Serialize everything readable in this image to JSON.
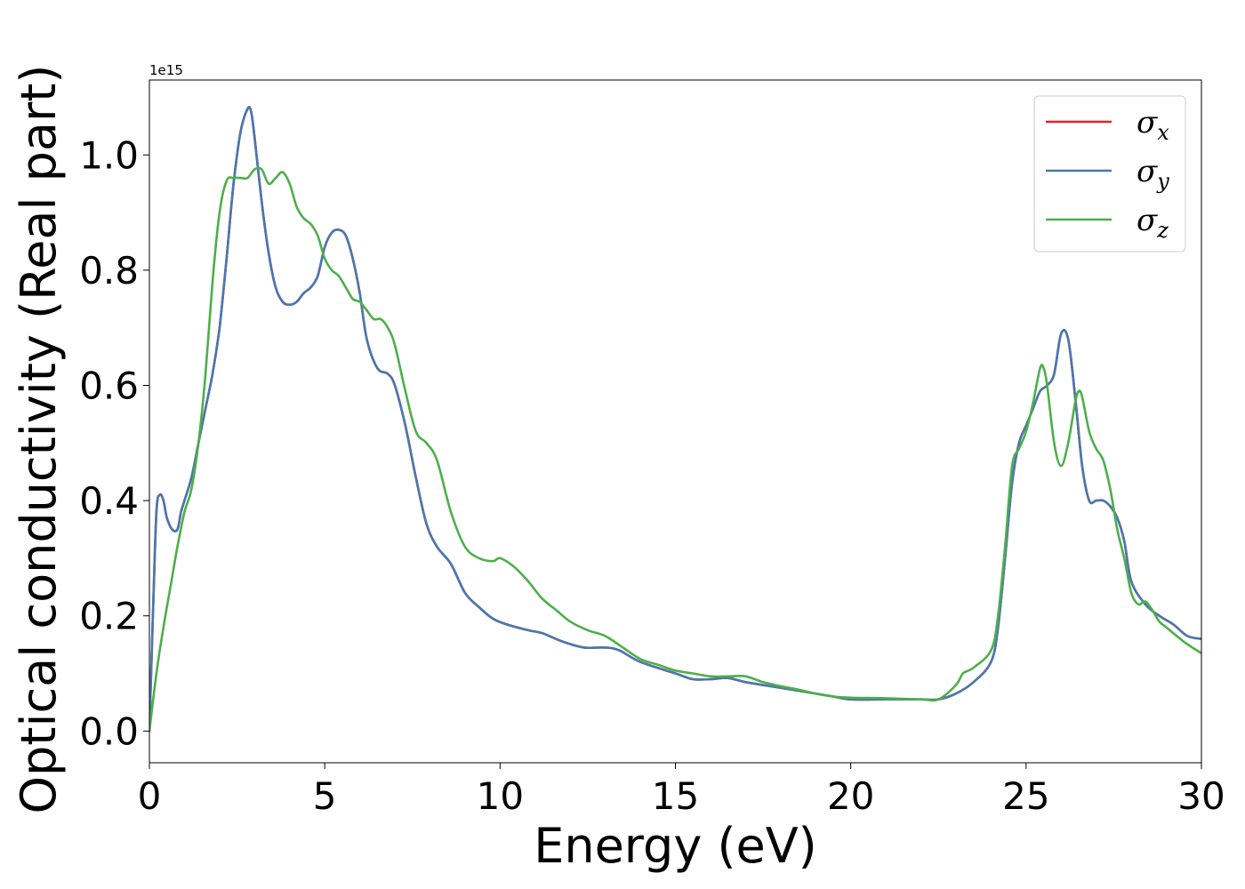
{
  "chart_data": {
    "type": "line",
    "xlabel": "Energy (eV)",
    "ylabel": "Optical conductivity (Real part)",
    "offset_text": "1e15",
    "xlim": [
      0,
      30
    ],
    "ylim": [
      -0.055,
      1.13
    ],
    "xticks": [
      0,
      5,
      10,
      15,
      20,
      25,
      30
    ],
    "xtick_labels": [
      "0",
      "5",
      "10",
      "15",
      "20",
      "25",
      "30"
    ],
    "yticks": [
      0.0,
      0.2,
      0.4,
      0.6,
      0.8,
      1.0
    ],
    "ytick_labels": [
      "0.0",
      "0.2",
      "0.4",
      "0.6",
      "0.8",
      "1.0"
    ],
    "grid": false,
    "legend_position": "top-right",
    "colors": {
      "sigma_x": "#d62728",
      "sigma_y": "#4878b0",
      "sigma_z": "#4daf4a"
    },
    "series": [
      {
        "name": "σx",
        "symbol": "σ",
        "subscript": "x",
        "color": "#d62728",
        "x": [
          0,
          0.1,
          0.2,
          0.3,
          0.4,
          0.5,
          0.65,
          0.8,
          0.9,
          1.0,
          1.2,
          1.4,
          1.6,
          1.8,
          2.0,
          2.2,
          2.4,
          2.6,
          2.8,
          2.9,
          3.0,
          3.2,
          3.4,
          3.6,
          3.8,
          4.0,
          4.2,
          4.4,
          4.6,
          4.8,
          5.0,
          5.2,
          5.4,
          5.6,
          5.8,
          6.0,
          6.2,
          6.5,
          6.8,
          7.0,
          7.3,
          7.6,
          7.9,
          8.2,
          8.6,
          9.0,
          9.4,
          9.8,
          10.2,
          10.8,
          11.2,
          11.8,
          12.4,
          13.0,
          13.4,
          14.0,
          15.0,
          15.5,
          16.0,
          16.5,
          17.0,
          18.0,
          19.0,
          19.5,
          20.0,
          21.0,
          22.0,
          22.5,
          23.0,
          23.5,
          24.0,
          24.2,
          24.4,
          24.6,
          24.8,
          25.0,
          25.2,
          25.4,
          25.6,
          25.8,
          26.0,
          26.2,
          26.4,
          26.6,
          26.8,
          27.0,
          27.2,
          27.4,
          27.6,
          27.8,
          28.0,
          28.4,
          28.8,
          29.2,
          29.6,
          30.0
        ],
        "values": [
          0.0,
          0.2,
          0.38,
          0.41,
          0.4,
          0.37,
          0.35,
          0.35,
          0.38,
          0.4,
          0.44,
          0.5,
          0.56,
          0.62,
          0.7,
          0.82,
          0.95,
          1.04,
          1.08,
          1.075,
          1.03,
          0.92,
          0.83,
          0.77,
          0.745,
          0.74,
          0.745,
          0.76,
          0.77,
          0.79,
          0.84,
          0.865,
          0.87,
          0.86,
          0.82,
          0.76,
          0.68,
          0.63,
          0.62,
          0.6,
          0.53,
          0.44,
          0.36,
          0.32,
          0.29,
          0.24,
          0.215,
          0.195,
          0.185,
          0.175,
          0.17,
          0.155,
          0.145,
          0.145,
          0.14,
          0.12,
          0.1,
          0.09,
          0.09,
          0.092,
          0.085,
          0.075,
          0.065,
          0.06,
          0.055,
          0.055,
          0.055,
          0.055,
          0.065,
          0.085,
          0.12,
          0.18,
          0.3,
          0.43,
          0.5,
          0.53,
          0.56,
          0.59,
          0.6,
          0.62,
          0.69,
          0.68,
          0.58,
          0.46,
          0.4,
          0.4,
          0.4,
          0.39,
          0.37,
          0.33,
          0.26,
          0.22,
          0.2,
          0.185,
          0.165,
          0.16
        ]
      },
      {
        "name": "σy",
        "symbol": "σ",
        "subscript": "y",
        "color": "#4878b0",
        "x": [
          0,
          0.1,
          0.2,
          0.3,
          0.4,
          0.5,
          0.65,
          0.8,
          0.9,
          1.0,
          1.2,
          1.4,
          1.6,
          1.8,
          2.0,
          2.2,
          2.4,
          2.6,
          2.8,
          2.9,
          3.0,
          3.2,
          3.4,
          3.6,
          3.8,
          4.0,
          4.2,
          4.4,
          4.6,
          4.8,
          5.0,
          5.2,
          5.4,
          5.6,
          5.8,
          6.0,
          6.2,
          6.5,
          6.8,
          7.0,
          7.3,
          7.6,
          7.9,
          8.2,
          8.6,
          9.0,
          9.4,
          9.8,
          10.2,
          10.8,
          11.2,
          11.8,
          12.4,
          13.0,
          13.4,
          14.0,
          15.0,
          15.5,
          16.0,
          16.5,
          17.0,
          18.0,
          19.0,
          19.5,
          20.0,
          21.0,
          22.0,
          22.5,
          23.0,
          23.5,
          24.0,
          24.2,
          24.4,
          24.6,
          24.8,
          25.0,
          25.2,
          25.4,
          25.6,
          25.8,
          26.0,
          26.2,
          26.4,
          26.6,
          26.8,
          27.0,
          27.2,
          27.4,
          27.6,
          27.8,
          28.0,
          28.4,
          28.8,
          29.2,
          29.6,
          30.0
        ],
        "values": [
          0.0,
          0.2,
          0.38,
          0.41,
          0.4,
          0.37,
          0.35,
          0.35,
          0.38,
          0.4,
          0.44,
          0.5,
          0.56,
          0.62,
          0.7,
          0.82,
          0.95,
          1.04,
          1.08,
          1.075,
          1.03,
          0.92,
          0.83,
          0.77,
          0.745,
          0.74,
          0.745,
          0.76,
          0.77,
          0.79,
          0.84,
          0.865,
          0.87,
          0.86,
          0.82,
          0.76,
          0.68,
          0.63,
          0.62,
          0.6,
          0.53,
          0.44,
          0.36,
          0.32,
          0.29,
          0.24,
          0.215,
          0.195,
          0.185,
          0.175,
          0.17,
          0.155,
          0.145,
          0.145,
          0.14,
          0.12,
          0.1,
          0.09,
          0.09,
          0.092,
          0.085,
          0.075,
          0.065,
          0.06,
          0.055,
          0.055,
          0.055,
          0.055,
          0.065,
          0.085,
          0.12,
          0.18,
          0.3,
          0.43,
          0.5,
          0.53,
          0.56,
          0.59,
          0.6,
          0.62,
          0.69,
          0.68,
          0.58,
          0.46,
          0.4,
          0.4,
          0.4,
          0.39,
          0.37,
          0.33,
          0.26,
          0.22,
          0.2,
          0.185,
          0.165,
          0.16
        ]
      },
      {
        "name": "σz",
        "symbol": "σ",
        "subscript": "z",
        "color": "#4daf4a",
        "x": [
          0,
          0.2,
          0.4,
          0.6,
          0.8,
          1.0,
          1.2,
          1.4,
          1.6,
          1.8,
          2.0,
          2.2,
          2.4,
          2.6,
          2.8,
          3.0,
          3.2,
          3.4,
          3.6,
          3.8,
          4.0,
          4.2,
          4.4,
          4.6,
          4.8,
          5.0,
          5.2,
          5.4,
          5.6,
          5.8,
          6.0,
          6.2,
          6.4,
          6.6,
          6.8,
          7.0,
          7.3,
          7.6,
          7.9,
          8.2,
          8.6,
          9.0,
          9.4,
          9.8,
          10.0,
          10.4,
          10.8,
          11.2,
          11.6,
          12.0,
          12.5,
          13.0,
          13.5,
          14.0,
          14.5,
          15.0,
          15.5,
          16.0,
          16.5,
          17.0,
          17.5,
          18.0,
          18.5,
          19.0,
          19.5,
          20.0,
          21.0,
          22.0,
          22.5,
          23.0,
          23.2,
          23.5,
          24.0,
          24.2,
          24.4,
          24.6,
          24.8,
          25.0,
          25.2,
          25.4,
          25.5,
          25.6,
          25.8,
          26.0,
          26.2,
          26.4,
          26.5,
          26.6,
          26.8,
          27.0,
          27.2,
          27.4,
          27.6,
          27.8,
          28.0,
          28.2,
          28.4,
          28.6,
          28.8,
          29.0,
          29.5,
          30.0
        ],
        "values": [
          0.0,
          0.1,
          0.18,
          0.25,
          0.32,
          0.38,
          0.42,
          0.5,
          0.62,
          0.78,
          0.9,
          0.955,
          0.96,
          0.96,
          0.96,
          0.975,
          0.975,
          0.95,
          0.96,
          0.97,
          0.95,
          0.91,
          0.89,
          0.88,
          0.86,
          0.82,
          0.8,
          0.79,
          0.77,
          0.75,
          0.745,
          0.73,
          0.715,
          0.715,
          0.7,
          0.67,
          0.59,
          0.52,
          0.5,
          0.47,
          0.38,
          0.32,
          0.3,
          0.295,
          0.3,
          0.285,
          0.26,
          0.23,
          0.21,
          0.19,
          0.175,
          0.165,
          0.145,
          0.125,
          0.115,
          0.105,
          0.1,
          0.095,
          0.095,
          0.095,
          0.085,
          0.078,
          0.072,
          0.065,
          0.06,
          0.058,
          0.057,
          0.055,
          0.055,
          0.08,
          0.1,
          0.11,
          0.14,
          0.2,
          0.32,
          0.46,
          0.49,
          0.52,
          0.57,
          0.63,
          0.63,
          0.6,
          0.5,
          0.46,
          0.5,
          0.57,
          0.59,
          0.58,
          0.52,
          0.49,
          0.47,
          0.42,
          0.35,
          0.3,
          0.24,
          0.22,
          0.225,
          0.21,
          0.19,
          0.18,
          0.155,
          0.135
        ]
      }
    ]
  }
}
